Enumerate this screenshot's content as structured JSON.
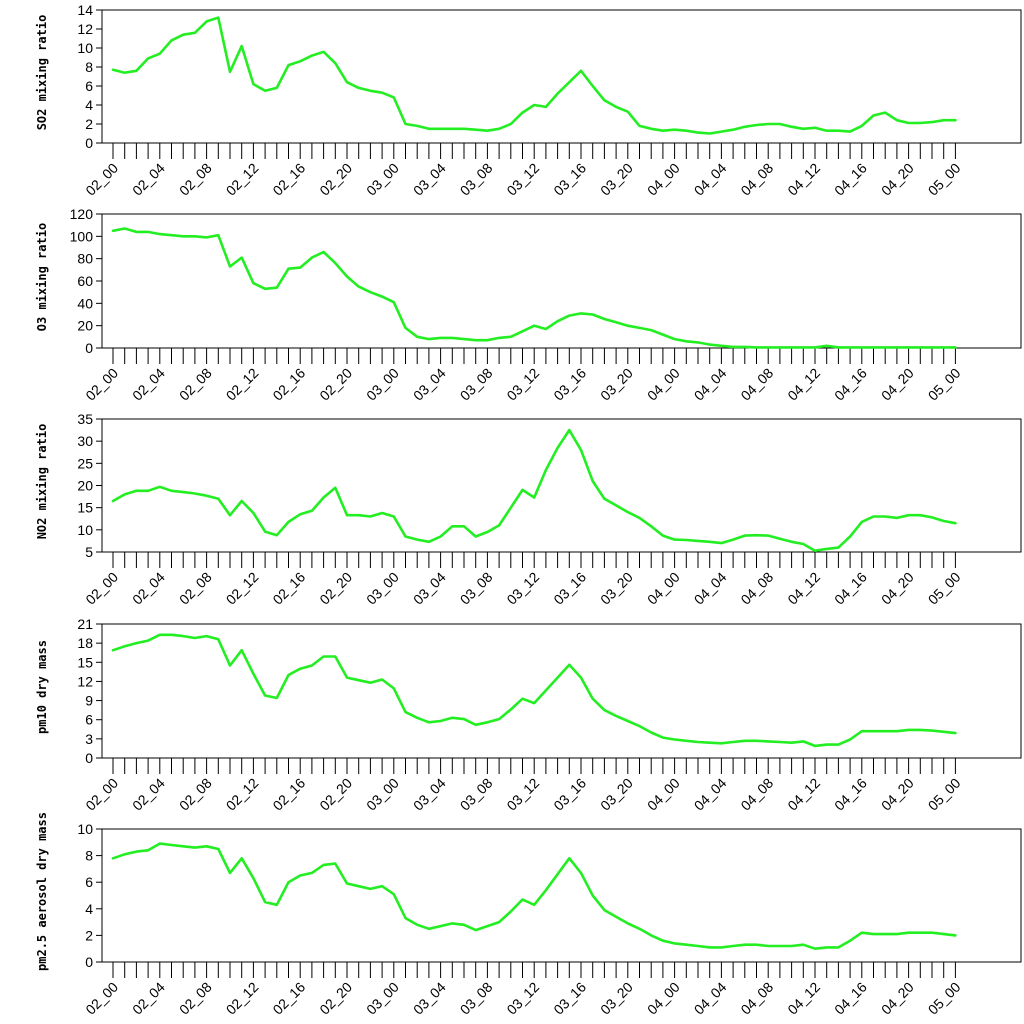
{
  "chart_data": [
    {
      "type": "line",
      "ylabel": "SO2 mixing ratio",
      "ylim": [
        0,
        14
      ],
      "yticks": [
        0,
        2,
        4,
        6,
        8,
        10,
        12,
        14
      ],
      "x_tick_labels": [
        "02_00",
        "02_04",
        "02_08",
        "02_12",
        "02_16",
        "02_20",
        "03_00",
        "03_04",
        "03_08",
        "03_12",
        "03_16",
        "03_20",
        "04_00",
        "04_04",
        "04_08",
        "04_12",
        "04_16",
        "04_20",
        "05_00"
      ],
      "x_hours": [
        0,
        1,
        2,
        3,
        4,
        5,
        6,
        7,
        8,
        9,
        10,
        11,
        12,
        13,
        14,
        15,
        16,
        17,
        18,
        19,
        20,
        21,
        22,
        23,
        24,
        25,
        26,
        27,
        28,
        29,
        30,
        31,
        32,
        33,
        34,
        35,
        36,
        37,
        38,
        39,
        40,
        41,
        42,
        43,
        44,
        45,
        46,
        47,
        48,
        49,
        50,
        51,
        52,
        53,
        54,
        55,
        56,
        57,
        58,
        59,
        60,
        61,
        62,
        63,
        64,
        65,
        66,
        67,
        68,
        69,
        70,
        71,
        72
      ],
      "grid": false,
      "line_color": "#22ee22",
      "values": [
        7.7,
        7.4,
        7.6,
        8.9,
        9.4,
        10.8,
        11.4,
        11.6,
        12.8,
        13.2,
        7.5,
        10.2,
        6.2,
        5.5,
        5.8,
        8.2,
        8.6,
        9.2,
        9.6,
        8.4,
        6.4,
        5.8,
        5.5,
        5.3,
        4.8,
        2.0,
        1.8,
        1.5,
        1.5,
        1.5,
        1.5,
        1.4,
        1.3,
        1.5,
        2.0,
        3.2,
        4.0,
        3.8,
        5.2,
        6.4,
        7.6,
        6.0,
        4.5,
        3.8,
        3.3,
        1.8,
        1.5,
        1.3,
        1.4,
        1.3,
        1.1,
        1.0,
        1.2,
        1.4,
        1.7,
        1.9,
        2.0,
        2.0,
        1.7,
        1.5,
        1.6,
        1.3,
        1.3,
        1.2,
        1.8,
        2.9,
        3.2,
        2.4,
        2.1,
        2.1,
        2.2,
        2.4,
        2.4
      ]
    },
    {
      "type": "line",
      "ylabel": "O3 mixing ratio",
      "ylim": [
        0,
        120
      ],
      "yticks": [
        0,
        20,
        40,
        60,
        80,
        100,
        120
      ],
      "x_tick_labels": [
        "02_00",
        "02_04",
        "02_08",
        "02_12",
        "02_16",
        "02_20",
        "03_00",
        "03_04",
        "03_08",
        "03_12",
        "03_16",
        "03_20",
        "04_00",
        "04_04",
        "04_08",
        "04_12",
        "04_16",
        "04_20",
        "05_00"
      ],
      "grid": false,
      "line_color": "#22ee22",
      "values": [
        105,
        107,
        104,
        104,
        102,
        101,
        100,
        100,
        99,
        101,
        73,
        81,
        58,
        53,
        54,
        71,
        72,
        81,
        86,
        76,
        64,
        55,
        50,
        46,
        41,
        18,
        10,
        8,
        9,
        9,
        8,
        7,
        7,
        9,
        10,
        15,
        20,
        17,
        24,
        29,
        31,
        30,
        26,
        23,
        20,
        18,
        16,
        12,
        8,
        6,
        5,
        3,
        2,
        1,
        1,
        0.5,
        0.5,
        0.5,
        0.5,
        0.5,
        0.5,
        2,
        0.5,
        0.5,
        0.5,
        0.5,
        0.5,
        0.5,
        0.5,
        0.5,
        0.5,
        0.5,
        0.5
      ]
    },
    {
      "type": "line",
      "ylabel": "NO2 mixing ratio",
      "ylim": [
        5,
        35
      ],
      "yticks": [
        5,
        10,
        15,
        20,
        25,
        30,
        35
      ],
      "x_tick_labels": [
        "02_00",
        "02_04",
        "02_08",
        "02_12",
        "02_16",
        "02_20",
        "03_00",
        "03_04",
        "03_08",
        "03_12",
        "03_16",
        "03_20",
        "04_00",
        "04_04",
        "04_08",
        "04_12",
        "04_16",
        "04_20",
        "05_00"
      ],
      "grid": false,
      "line_color": "#22ee22",
      "values": [
        16.5,
        18.0,
        18.8,
        18.8,
        19.7,
        18.8,
        18.5,
        18.2,
        17.7,
        17.0,
        13.3,
        16.5,
        13.8,
        9.6,
        8.8,
        11.8,
        13.5,
        14.3,
        17.3,
        19.5,
        13.3,
        13.3,
        13.0,
        13.8,
        13.0,
        8.5,
        7.8,
        7.3,
        8.5,
        10.8,
        10.8,
        8.5,
        9.5,
        11.0,
        15.0,
        19.0,
        17.3,
        23.5,
        28.5,
        32.5,
        28.0,
        21.0,
        17.0,
        15.5,
        14.0,
        12.7,
        10.8,
        8.7,
        7.8,
        7.7,
        7.5,
        7.3,
        7.0,
        7.8,
        8.7,
        8.8,
        8.7,
        8.0,
        7.3,
        6.8,
        5.3,
        5.7,
        6.0,
        8.5,
        11.8,
        13.0,
        13.0,
        12.7,
        13.3,
        13.3,
        12.8,
        12.0,
        11.5
      ]
    },
    {
      "type": "line",
      "ylabel": "pm10 dry mass",
      "ylim": [
        0,
        21
      ],
      "yticks": [
        0,
        3,
        6,
        9,
        12,
        15,
        18,
        21
      ],
      "x_tick_labels": [
        "02_00",
        "02_04",
        "02_08",
        "02_12",
        "02_16",
        "02_20",
        "03_00",
        "03_04",
        "03_08",
        "03_12",
        "03_16",
        "03_20",
        "04_00",
        "04_04",
        "04_08",
        "04_12",
        "04_16",
        "04_20",
        "05_00"
      ],
      "grid": false,
      "line_color": "#22ee22",
      "values": [
        16.9,
        17.5,
        18.0,
        18.4,
        19.3,
        19.3,
        19.1,
        18.8,
        19.1,
        18.6,
        14.5,
        16.9,
        13.2,
        9.8,
        9.4,
        13.0,
        14.0,
        14.5,
        15.9,
        15.9,
        12.6,
        12.2,
        11.8,
        12.3,
        10.9,
        7.2,
        6.3,
        5.6,
        5.8,
        6.3,
        6.1,
        5.2,
        5.6,
        6.1,
        7.6,
        9.3,
        8.6,
        10.6,
        12.6,
        14.6,
        12.6,
        9.3,
        7.5,
        6.6,
        5.8,
        5.0,
        4.0,
        3.2,
        2.9,
        2.7,
        2.5,
        2.4,
        2.3,
        2.5,
        2.7,
        2.7,
        2.6,
        2.5,
        2.4,
        2.6,
        1.9,
        2.1,
        2.1,
        2.9,
        4.2,
        4.2,
        4.2,
        4.2,
        4.4,
        4.4,
        4.3,
        4.1,
        3.9
      ]
    },
    {
      "type": "line",
      "ylabel": "pm2.5 aerosol dry mass",
      "ylim": [
        0,
        10
      ],
      "yticks": [
        0,
        2,
        4,
        6,
        8,
        10
      ],
      "x_tick_labels": [
        "02_00",
        "02_04",
        "02_08",
        "02_12",
        "02_16",
        "02_20",
        "03_00",
        "03_04",
        "03_08",
        "03_12",
        "03_16",
        "03_20",
        "04_00",
        "04_04",
        "04_08",
        "04_12",
        "04_16",
        "04_20",
        "05_00"
      ],
      "grid": false,
      "line_color": "#22ee22",
      "values": [
        7.8,
        8.1,
        8.3,
        8.4,
        8.9,
        8.8,
        8.7,
        8.6,
        8.7,
        8.5,
        6.7,
        7.8,
        6.3,
        4.5,
        4.3,
        6.0,
        6.5,
        6.7,
        7.3,
        7.4,
        5.9,
        5.7,
        5.5,
        5.7,
        5.1,
        3.3,
        2.8,
        2.5,
        2.7,
        2.9,
        2.8,
        2.4,
        2.7,
        3.0,
        3.8,
        4.7,
        4.3,
        5.4,
        6.6,
        7.8,
        6.7,
        5.0,
        3.9,
        3.4,
        2.9,
        2.5,
        2.0,
        1.6,
        1.4,
        1.3,
        1.2,
        1.1,
        1.1,
        1.2,
        1.3,
        1.3,
        1.2,
        1.2,
        1.2,
        1.3,
        1.0,
        1.1,
        1.1,
        1.6,
        2.2,
        2.1,
        2.1,
        2.1,
        2.2,
        2.2,
        2.2,
        2.1,
        2.0
      ]
    }
  ]
}
